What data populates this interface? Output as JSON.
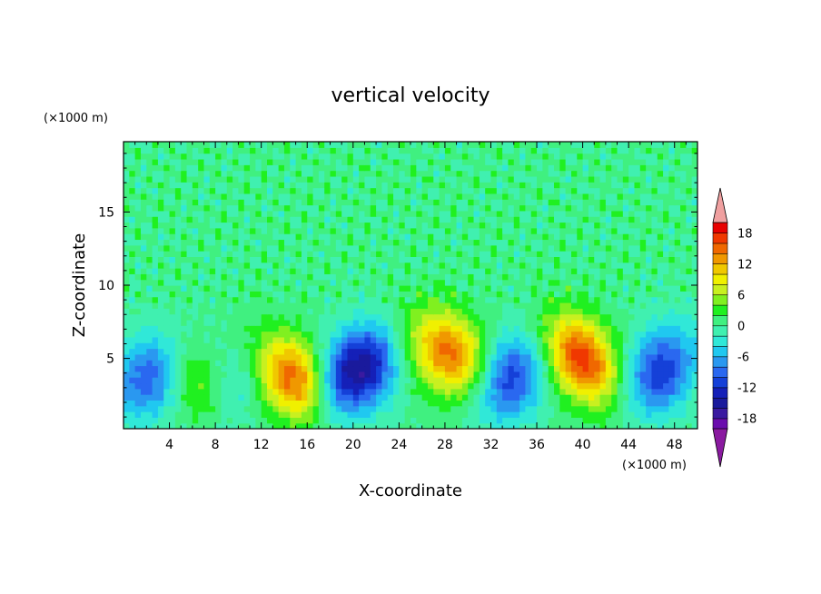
{
  "chart_data": {
    "type": "heatmap",
    "title": "vertical velocity",
    "xlabel": "X-coordinate",
    "ylabel": "Z-coordinate",
    "x_unit": "(×1000 m)",
    "y_unit": "(×1000 m)",
    "xlim": [
      0,
      50
    ],
    "ylim": [
      0.2,
      19.8
    ],
    "x_ticks": [
      4,
      8,
      12,
      16,
      20,
      24,
      28,
      32,
      36,
      40,
      44,
      48
    ],
    "y_ticks": [
      5,
      10,
      15
    ],
    "colorbar": {
      "levels": [
        -20,
        -18,
        -16,
        -14,
        -12,
        -10,
        -8,
        -6,
        -4,
        -2,
        0,
        2,
        4,
        6,
        8,
        10,
        12,
        14,
        16,
        18,
        20
      ],
      "labels": [
        "18",
        "12",
        "6",
        "0",
        "-6",
        "-12",
        "-18"
      ],
      "label_values": [
        18,
        12,
        6,
        0,
        -6,
        -12,
        -18
      ],
      "colors": [
        "#6a0dad",
        "#3a1aa0",
        "#1a1a9c",
        "#1520b8",
        "#1540d8",
        "#2a68f0",
        "#2a98f0",
        "#20c8f0",
        "#30e8d8",
        "#40f0b0",
        "#40f080",
        "#20f020",
        "#80f020",
        "#c8f020",
        "#f0f000",
        "#f0c800",
        "#f09800",
        "#f06800",
        "#f03800",
        "#e80000"
      ],
      "under_color": "#8a1aa0",
      "over_color": "#f0a0a0",
      "extend": "both"
    },
    "features": [
      {
        "x": 2.2,
        "z": 3.8,
        "amp": -10
      },
      {
        "x": 6.0,
        "z": 3.5,
        "amp": 5
      },
      {
        "x": 14.8,
        "z": 3.6,
        "amp": 15
      },
      {
        "x": 21.0,
        "z": 4.4,
        "amp": -14
      },
      {
        "x": 28.6,
        "z": 5.4,
        "amp": 14
      },
      {
        "x": 33.6,
        "z": 3.6,
        "amp": -12
      },
      {
        "x": 39.9,
        "z": 5.0,
        "amp": 17
      },
      {
        "x": 46.8,
        "z": 4.2,
        "amp": -12
      },
      {
        "x": 9.8,
        "z": 3.0,
        "amp": -3
      },
      {
        "x": 18.4,
        "z": 3.2,
        "amp": -6
      },
      {
        "x": 25.2,
        "z": 5.5,
        "amp": 3
      }
    ]
  }
}
